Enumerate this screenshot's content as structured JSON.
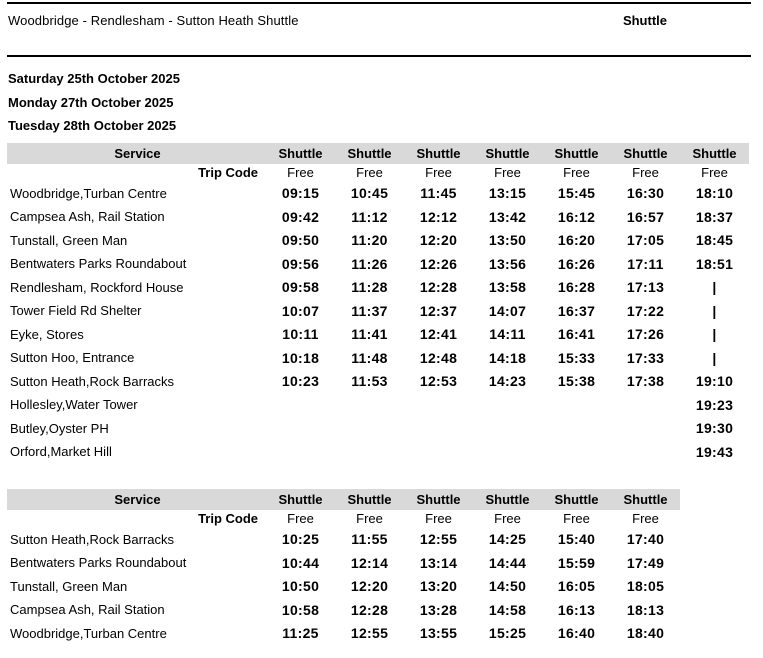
{
  "header": {
    "title": "Woodbridge - Rendlesham - Sutton Heath Shuttle",
    "right_label": "Shuttle"
  },
  "dates": [
    "Saturday 25th October 2025",
    "Monday 27th October 2025",
    "Tuesday 28th October 2025"
  ],
  "colors": {
    "header_band_bg": "#d9d9d9",
    "text": "#000000",
    "rule": "#000000"
  },
  "tables": [
    {
      "service_label": "Service",
      "trip_code_label": "Trip Code",
      "column_headers": [
        "Shuttle",
        "Shuttle",
        "Shuttle",
        "Shuttle",
        "Shuttle",
        "Shuttle",
        "Shuttle"
      ],
      "trip_codes": [
        "Free",
        "Free",
        "Free",
        "Free",
        "Free",
        "Free",
        "Free"
      ],
      "rows": [
        {
          "stop": "Woodbridge,Turban Centre",
          "times": [
            "09:15",
            "10:45",
            "11:45",
            "13:15",
            "15:45",
            "16:30",
            "18:10"
          ]
        },
        {
          "stop": "Campsea Ash, Rail Station",
          "times": [
            "09:42",
            "11:12",
            "12:12",
            "13:42",
            "16:12",
            "16:57",
            "18:37"
          ]
        },
        {
          "stop": "Tunstall, Green Man",
          "times": [
            "09:50",
            "11:20",
            "12:20",
            "13:50",
            "16:20",
            "17:05",
            "18:45"
          ]
        },
        {
          "stop": "Bentwaters Parks Roundabout",
          "times": [
            "09:56",
            "11:26",
            "12:26",
            "13:56",
            "16:26",
            "17:11",
            "18:51"
          ]
        },
        {
          "stop": "Rendlesham, Rockford House",
          "times": [
            "09:58",
            "11:28",
            "12:28",
            "13:58",
            "16:28",
            "17:13",
            "|"
          ]
        },
        {
          "stop": "Tower Field Rd Shelter",
          "times": [
            "10:07",
            "11:37",
            "12:37",
            "14:07",
            "16:37",
            "17:22",
            "|"
          ]
        },
        {
          "stop": "Eyke, Stores",
          "times": [
            "10:11",
            "11:41",
            "12:41",
            "14:11",
            "16:41",
            "17:26",
            "|"
          ]
        },
        {
          "stop": "Sutton Hoo, Entrance",
          "times": [
            "10:18",
            "11:48",
            "12:48",
            "14:18",
            "15:33",
            "17:33",
            "|"
          ]
        },
        {
          "stop": "Sutton Heath,Rock Barracks",
          "times": [
            "10:23",
            "11:53",
            "12:53",
            "14:23",
            "15:38",
            "17:38",
            "19:10"
          ]
        },
        {
          "stop": "Hollesley,Water Tower",
          "times": [
            "",
            "",
            "",
            "",
            "",
            "",
            "19:23"
          ]
        },
        {
          "stop": "Butley,Oyster PH",
          "times": [
            "",
            "",
            "",
            "",
            "",
            "",
            "19:30"
          ]
        },
        {
          "stop": "Orford,Market Hill",
          "times": [
            "",
            "",
            "",
            "",
            "",
            "",
            "19:43"
          ]
        }
      ]
    },
    {
      "service_label": "Service",
      "trip_code_label": "Trip Code",
      "column_headers": [
        "Shuttle",
        "Shuttle",
        "Shuttle",
        "Shuttle",
        "Shuttle",
        "Shuttle"
      ],
      "trip_codes": [
        "Free",
        "Free",
        "Free",
        "Free",
        "Free",
        "Free"
      ],
      "rows": [
        {
          "stop": "Sutton Heath,Rock Barracks",
          "times": [
            "10:25",
            "11:55",
            "12:55",
            "14:25",
            "15:40",
            "17:40"
          ]
        },
        {
          "stop": "Bentwaters Parks Roundabout",
          "times": [
            "10:44",
            "12:14",
            "13:14",
            "14:44",
            "15:59",
            "17:49"
          ]
        },
        {
          "stop": "Tunstall, Green Man",
          "times": [
            "10:50",
            "12:20",
            "13:20",
            "14:50",
            "16:05",
            "18:05"
          ]
        },
        {
          "stop": "Campsea Ash, Rail Station",
          "times": [
            "10:58",
            "12:28",
            "13:28",
            "14:58",
            "16:13",
            "18:13"
          ]
        },
        {
          "stop": "Woodbridge,Turban Centre",
          "times": [
            "11:25",
            "12:55",
            "13:55",
            "15:25",
            "16:40",
            "18:40"
          ]
        }
      ]
    }
  ],
  "layout": {
    "stop_col_width": 188,
    "trip_col_width": 71,
    "time_col_width": 69
  }
}
